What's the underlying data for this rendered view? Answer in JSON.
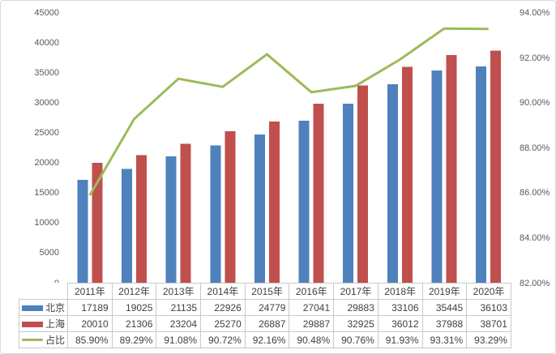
{
  "window": {
    "background": "#ffffff",
    "frame_border_color": "#D5DBE4",
    "table_border_color": "#C9C9C9",
    "text_color": "#3f3f3f",
    "axis_text_color": "#595959"
  },
  "chart_data": {
    "type": "combo-bar-line",
    "title": "",
    "grid": false,
    "legend_position": "data-table-left",
    "categories": [
      "2011年",
      "2012年",
      "2013年",
      "2014年",
      "2015年",
      "2016年",
      "2017年",
      "2018年",
      "2019年",
      "2020年"
    ],
    "series": [
      {
        "id": "beijing",
        "name": "北京",
        "type": "bar",
        "axis": "left",
        "color": "#4F81BD",
        "values": [
          17189,
          19025,
          21135,
          22926,
          24779,
          27041,
          29883,
          33106,
          35445,
          36103
        ],
        "display": [
          "17189",
          "19025",
          "21135",
          "22926",
          "24779",
          "27041",
          "29883",
          "33106",
          "35445",
          "36103"
        ]
      },
      {
        "id": "shanghai",
        "name": "上海",
        "type": "bar",
        "axis": "left",
        "color": "#C0504D",
        "values": [
          20010,
          21306,
          23204,
          25270,
          26887,
          29887,
          32925,
          36012,
          37988,
          38701
        ],
        "display": [
          "20010",
          "21306",
          "23204",
          "25270",
          "26887",
          "29887",
          "32925",
          "36012",
          "37988",
          "38701"
        ]
      },
      {
        "id": "zhanbi",
        "name": "占比",
        "type": "line",
        "axis": "right",
        "color": "#9BBB59",
        "values": [
          85.9,
          89.29,
          91.08,
          90.72,
          92.16,
          90.48,
          90.76,
          91.93,
          93.31,
          93.29
        ],
        "display": [
          "85.90%",
          "89.29%",
          "91.08%",
          "90.72%",
          "92.16%",
          "90.48%",
          "90.76%",
          "91.93%",
          "93.31%",
          "93.29%"
        ]
      }
    ],
    "left_axis": {
      "min": 0,
      "max": 45000,
      "tick_labels": [
        "45000",
        "40000",
        "35000",
        "30000",
        "25000",
        "20000",
        "15000",
        "10000",
        "5000",
        "0"
      ]
    },
    "right_axis": {
      "min": 82,
      "max": 94,
      "tick_labels": [
        "94.00%",
        "92.00%",
        "90.00%",
        "88.00%",
        "86.00%",
        "84.00%",
        "82.00%"
      ]
    }
  }
}
